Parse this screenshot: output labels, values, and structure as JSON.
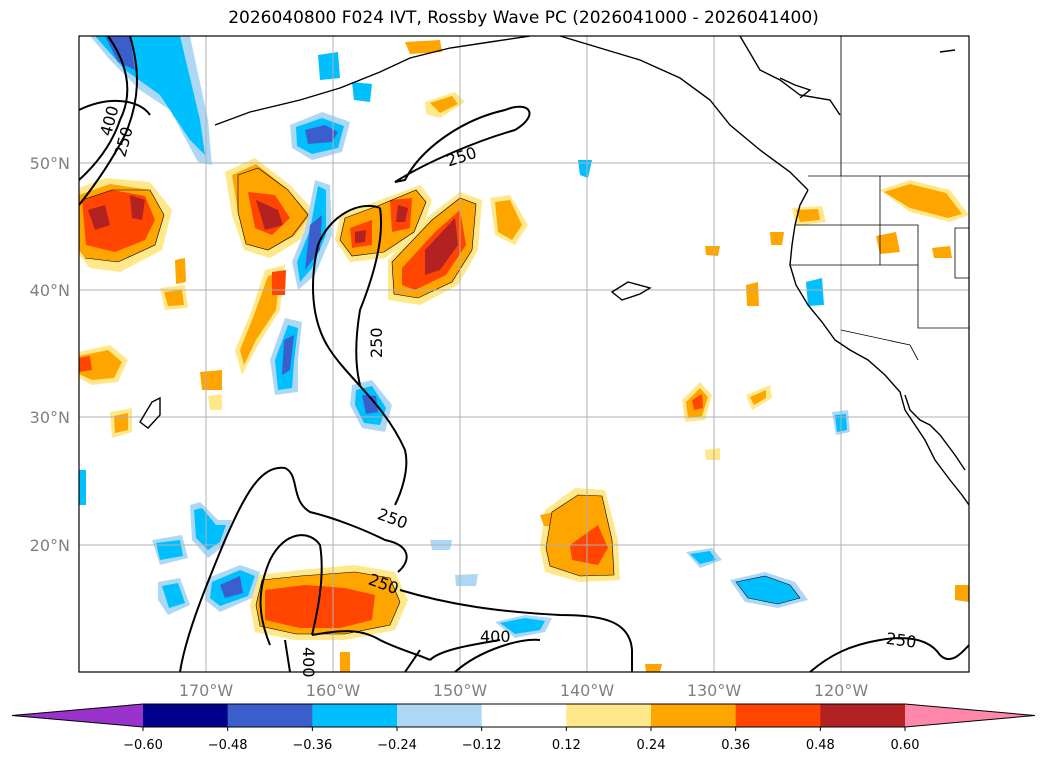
{
  "title": "2026040800 F024 IVT, Rossby Wave PC (2026041000 - 2026041400)",
  "lat_labels": [
    "50°N",
    "40°N",
    "30°N",
    "20°N"
  ],
  "lon_labels": [
    "170°W",
    "160°W",
    "150°W",
    "140°W",
    "130°W",
    "120°W"
  ],
  "contour_labels": [
    "400",
    "250",
    "250",
    "250",
    "250",
    "250",
    "400",
    "400",
    "250"
  ],
  "colorbar": {
    "ticks": [
      "−0.60",
      "−0.48",
      "−0.36",
      "−0.24",
      "−0.12",
      "0.12",
      "0.24",
      "0.36",
      "0.48",
      "0.60"
    ],
    "colors": [
      "#9933cc",
      "#00008b",
      "#3a5fcd",
      "#00bfff",
      "#add8f5",
      "#ffffff",
      "#ffe88a",
      "#ffa500",
      "#ff4500",
      "#b22222",
      "#ff88aa"
    ]
  },
  "colors": {
    "grid": "#b0b0b0",
    "coast": "#000000",
    "contour": "#000000",
    "tick_label": "#808080"
  }
}
